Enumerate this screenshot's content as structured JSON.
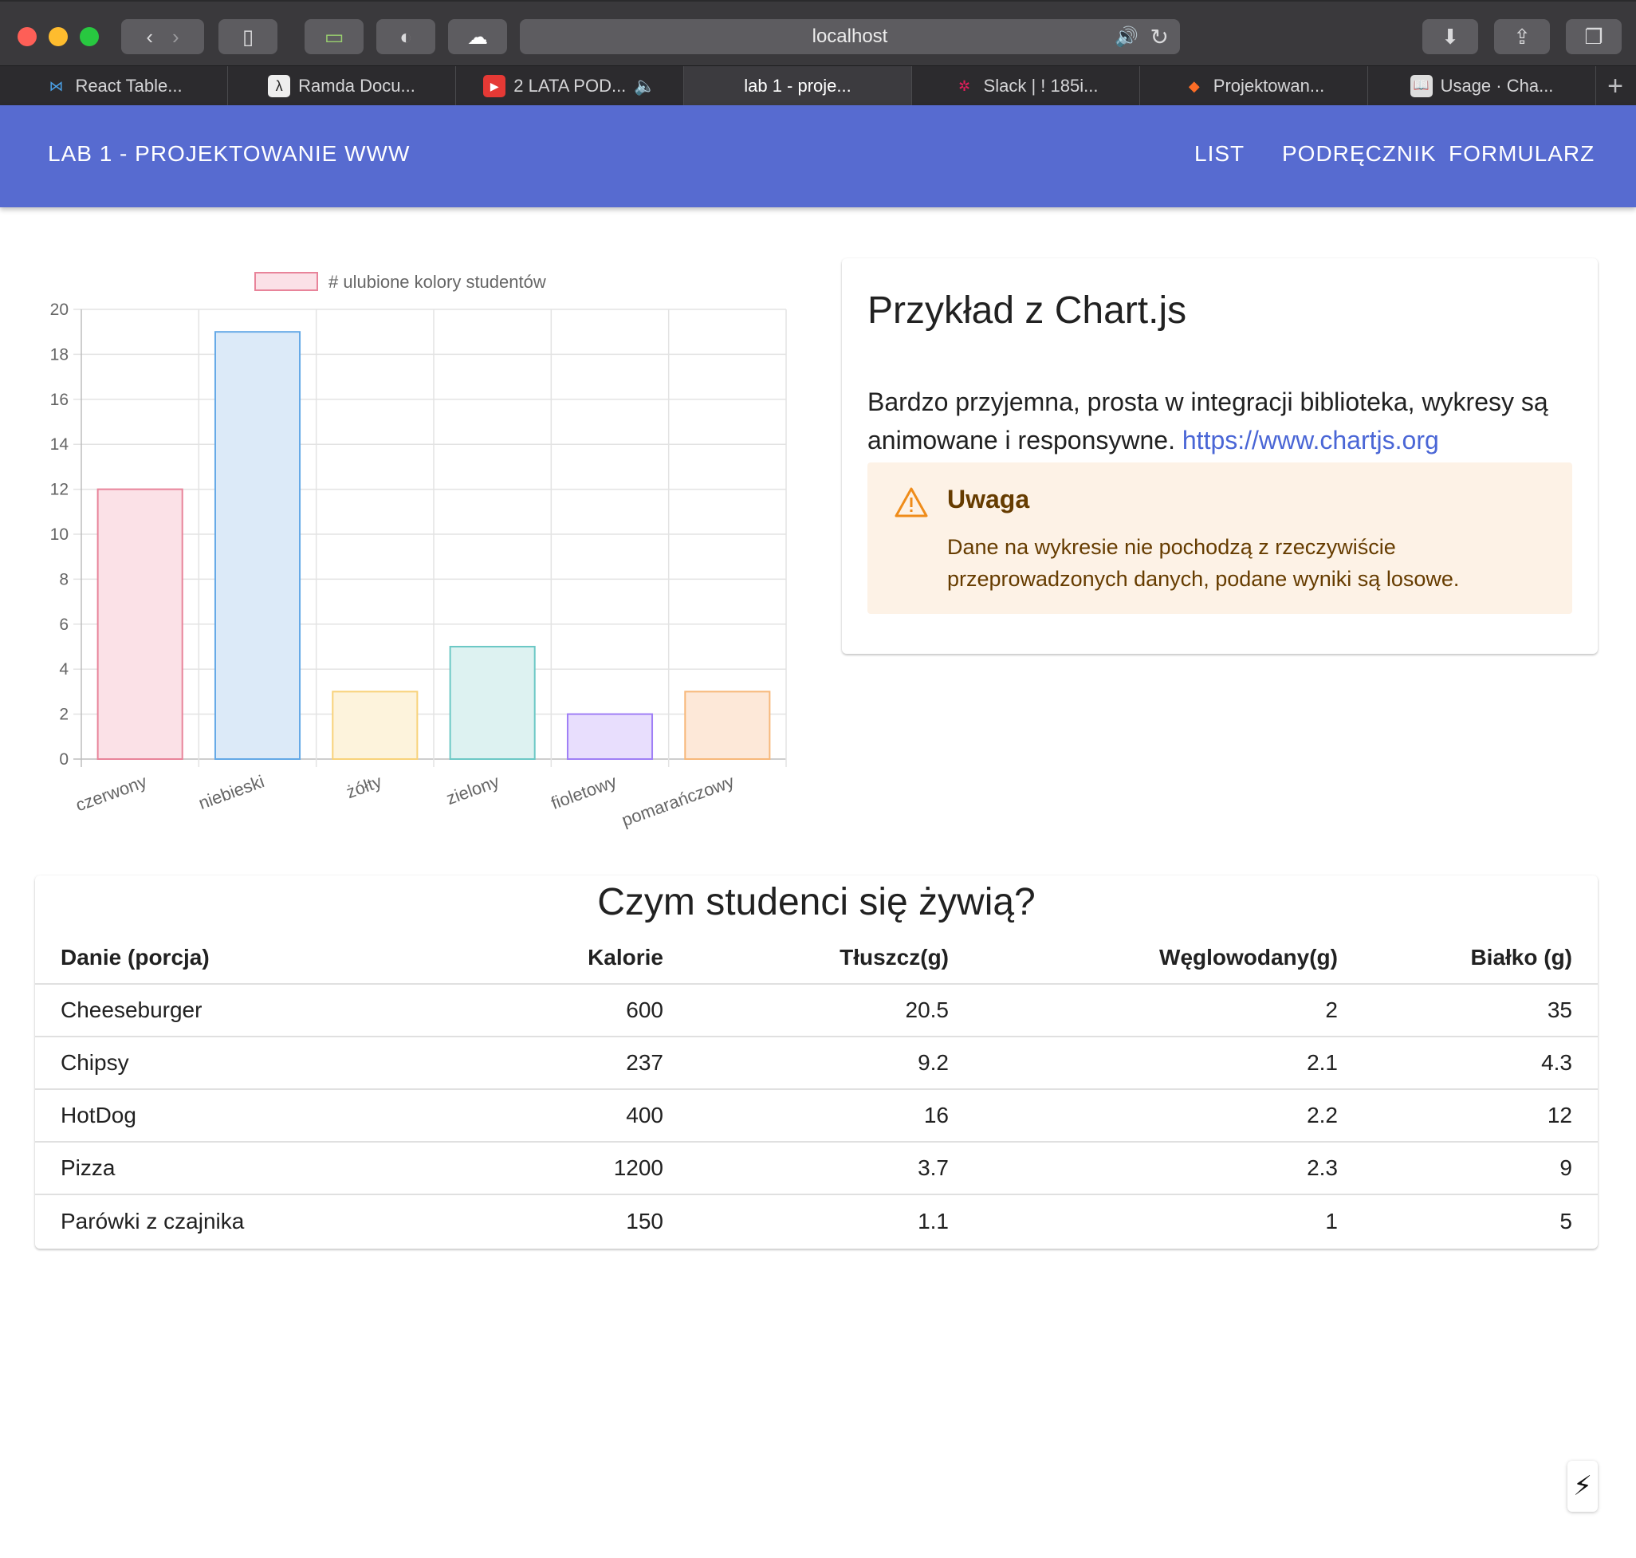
{
  "browser": {
    "url": "localhost",
    "tabs": [
      {
        "label": "React Table..."
      },
      {
        "label": "Ramda Docu..."
      },
      {
        "label": "2 LATA POD..."
      },
      {
        "label": "lab 1 - proje..."
      },
      {
        "label": "Slack | ! 185i..."
      },
      {
        "label": "Projektowan..."
      },
      {
        "label": "Usage · Cha..."
      }
    ]
  },
  "appbar": {
    "title": "LAB 1 - PROJEKTOWANIE WWW",
    "nav": [
      "LIST",
      "PODRĘCZNIK",
      "FORMULARZ"
    ]
  },
  "chart_data": {
    "type": "bar",
    "legend": "# ulubione kolory studentów",
    "categories": [
      "czerwony",
      "niebieski",
      "żółty",
      "zielony",
      "fioletowy",
      "pomarańczowy"
    ],
    "values": [
      12,
      19,
      3,
      5,
      2,
      3
    ],
    "ylim": [
      0,
      20
    ],
    "yticks": [
      0,
      2,
      4,
      6,
      8,
      10,
      12,
      14,
      16,
      18,
      20
    ],
    "colors": {
      "fill": [
        "#fbe1e7",
        "#dceaf8",
        "#fdf3dc",
        "#ddf2f1",
        "#e8defd",
        "#fde8d8"
      ],
      "border": [
        "#e8849a",
        "#63a8e6",
        "#f8d27a",
        "#6cc8c5",
        "#9f7ff6",
        "#f7b87a"
      ]
    },
    "grid": true
  },
  "info": {
    "title": "Przykład z Chart.js",
    "body": "Bardzo przyjemna, prosta w integracji biblioteka, wykresy są animowane i responsywne.",
    "link": "https://www.chartjs.org",
    "alert_title": "Uwaga",
    "alert_message": "Dane na wykresie nie pochodzą z rzeczywiście przeprowadzonych danych, podane wyniki są losowe."
  },
  "table": {
    "title": "Czym studenci się żywią?",
    "headers": [
      "Danie (porcja)",
      "Kalorie",
      "Tłuszcz(g)",
      "Węglowodany(g)",
      "Białko (g)"
    ],
    "rows": [
      [
        "Cheeseburger",
        "600",
        "20.5",
        "2",
        "35"
      ],
      [
        "Chipsy",
        "237",
        "9.2",
        "2.1",
        "4.3"
      ],
      [
        "HotDog",
        "400",
        "16",
        "2.2",
        "12"
      ],
      [
        "Pizza",
        "1200",
        "3.7",
        "2.3",
        "9"
      ],
      [
        "Parówki z czajnika",
        "150",
        "1.1",
        "1",
        "5"
      ]
    ]
  }
}
